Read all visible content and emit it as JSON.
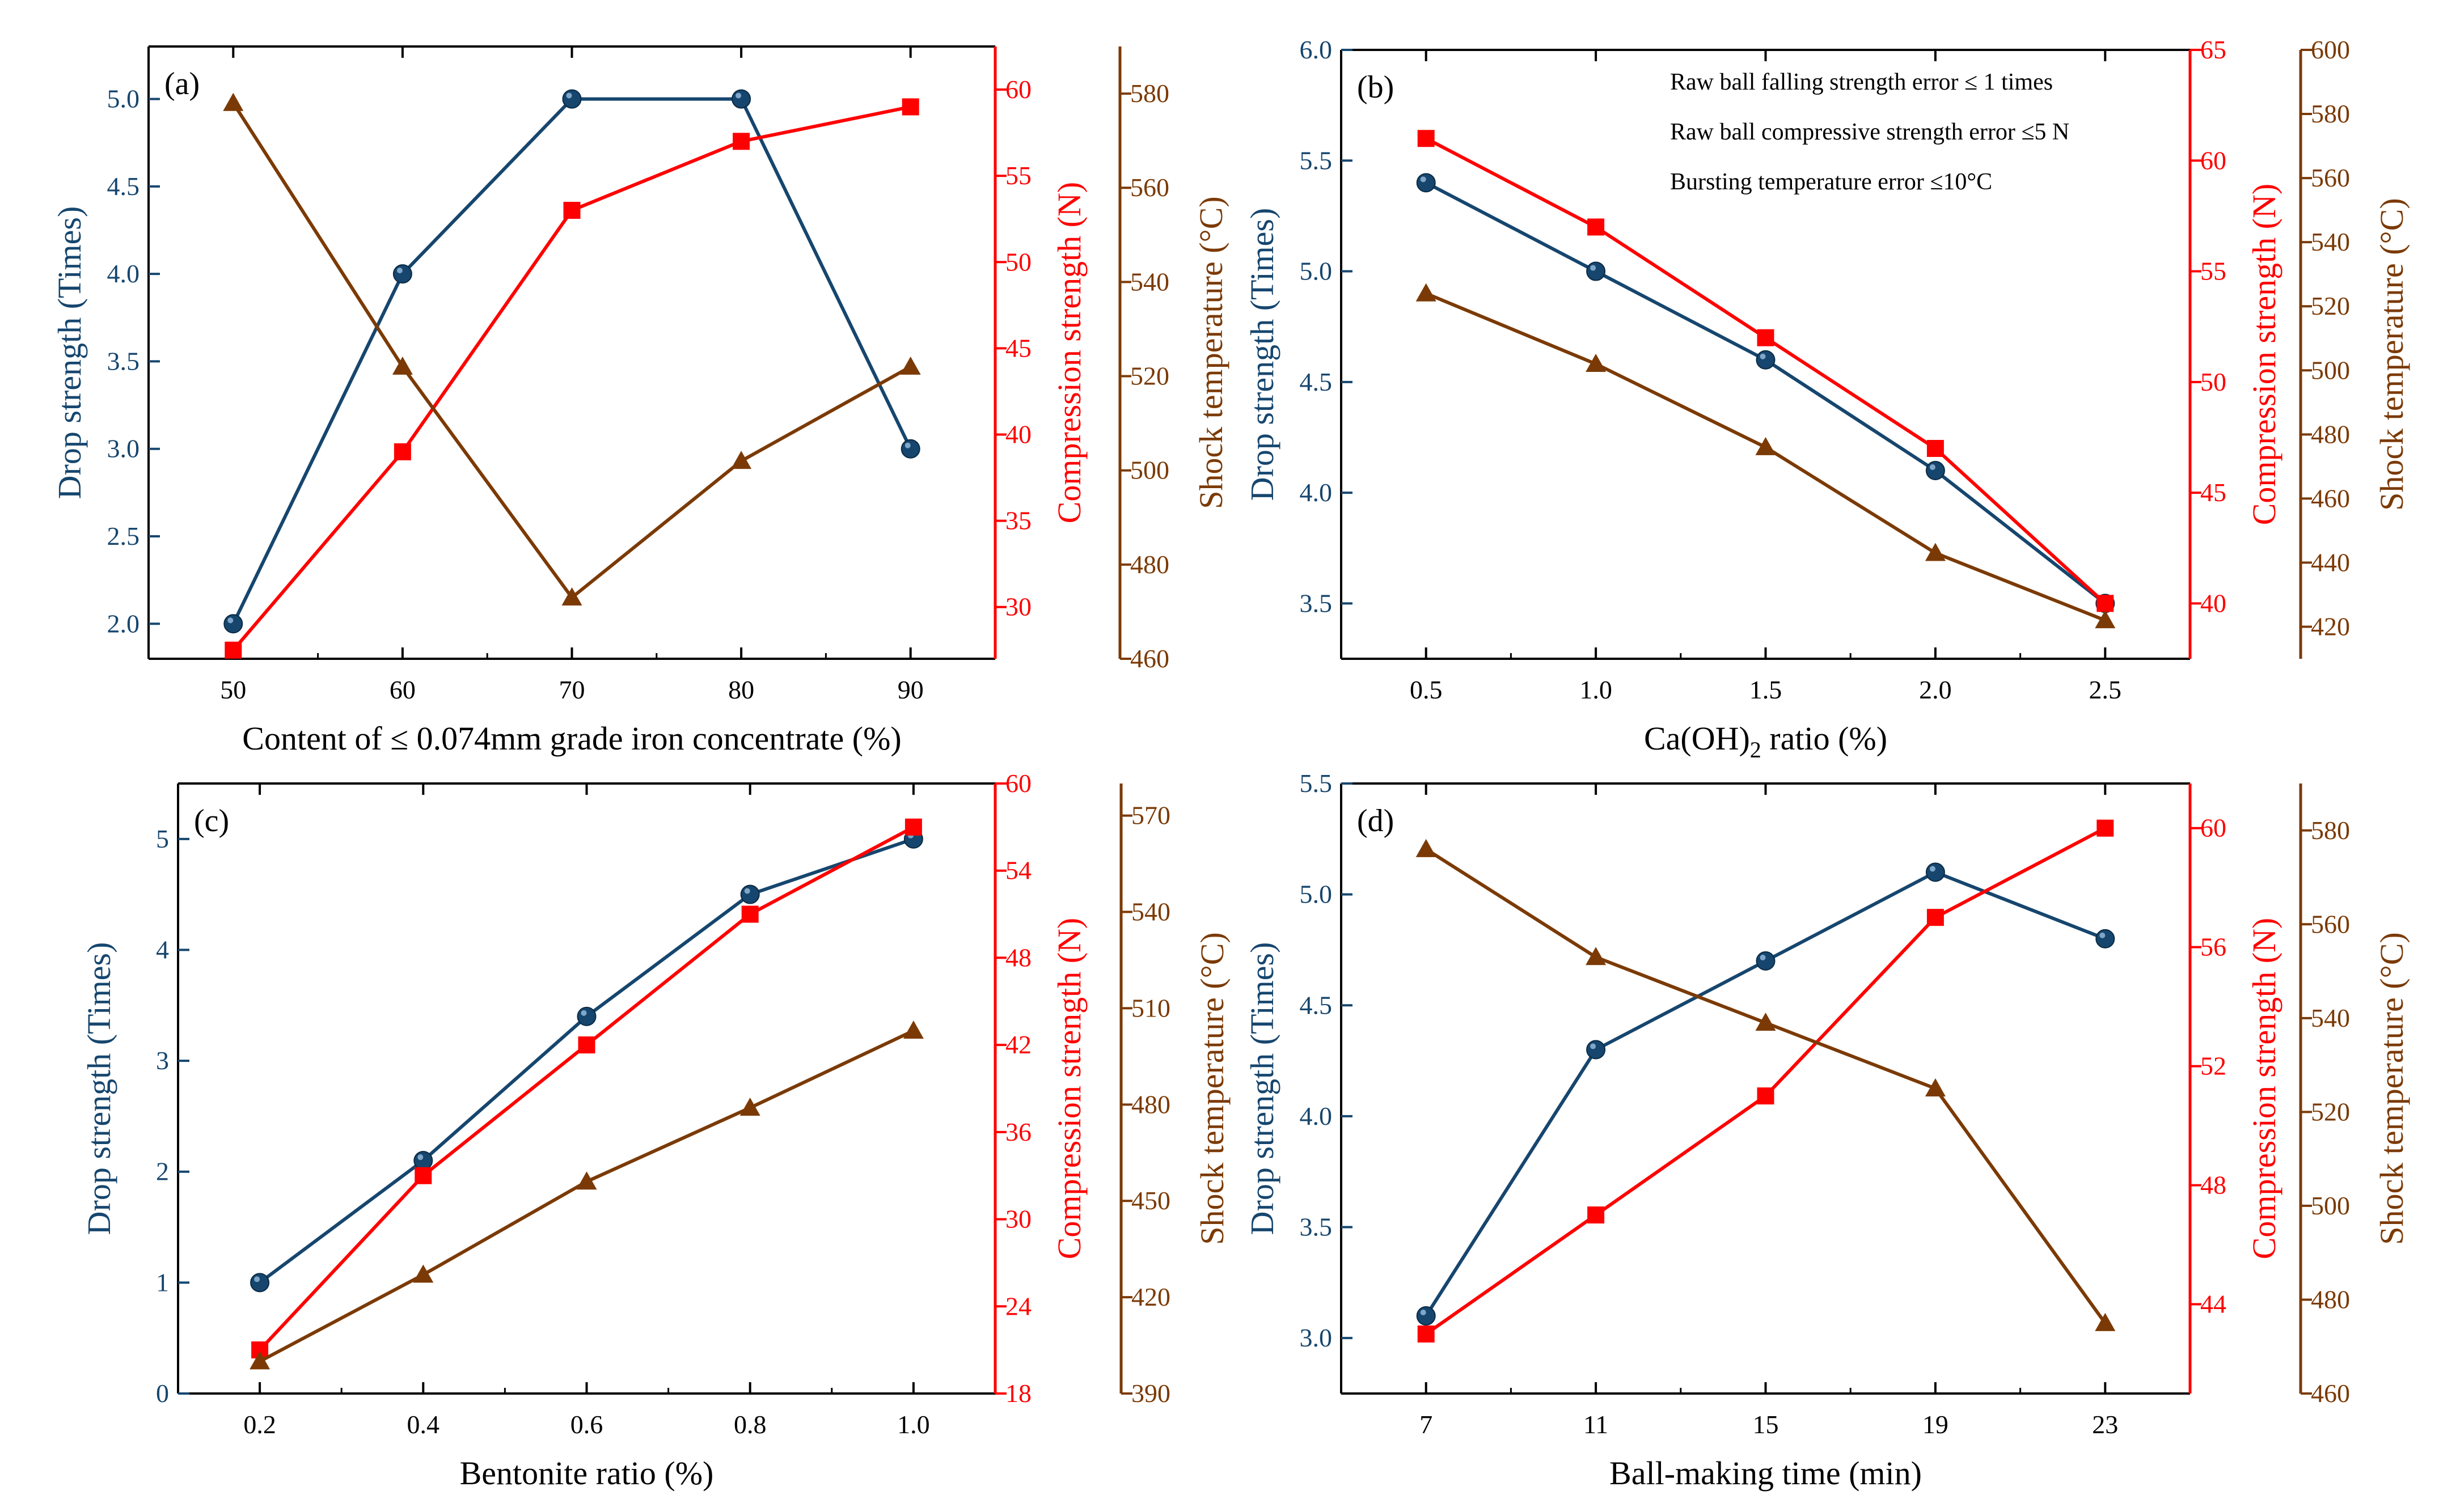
{
  "colors": {
    "blue": "#16466e",
    "red": "#ff0000",
    "brown": "#7b3a05",
    "black": "#000000"
  },
  "icons": {
    "drop_marker": "filled-circle-marker",
    "compression_marker": "filled-square-marker",
    "shock_marker": "filled-triangle-marker"
  },
  "chart_data": [
    {
      "type": "line",
      "panel_label": "(a)",
      "xlabel_main": "Content of ≤ 0.074mm grade iron concentrate (%)",
      "xlabel_sub": "",
      "xlabel_tail": "",
      "x": [
        50,
        60,
        70,
        80,
        90
      ],
      "xlim": [
        45,
        95
      ],
      "xticks": [
        "50",
        "60",
        "70",
        "80",
        "90"
      ],
      "ylabel_left": "Drop strength (Times)",
      "ylabel_right1": "Compression strength (N)",
      "ylabel_right2": "Shock temperature (°C)",
      "ylim_left": [
        1.8,
        5.3
      ],
      "yticks_left": [
        "2.0",
        "2.5",
        "3.0",
        "3.5",
        "4.0",
        "4.5",
        "5.0"
      ],
      "ylim_right1": [
        27,
        62.5
      ],
      "yticks_right1": [
        "30",
        "35",
        "40",
        "45",
        "50",
        "55",
        "60"
      ],
      "ylim_right2": [
        460,
        590
      ],
      "yticks_right2": [
        "460",
        "480",
        "500",
        "520",
        "540",
        "560",
        "580"
      ],
      "series": [
        {
          "name": "Drop strength",
          "axis": "left",
          "marker": "circle",
          "values": [
            2.0,
            4.0,
            5.0,
            5.0,
            3.0
          ]
        },
        {
          "name": "Compression strength",
          "axis": "right1",
          "marker": "square",
          "values": [
            27.5,
            39.0,
            53.0,
            57.0,
            59.0
          ]
        },
        {
          "name": "Shock temperature",
          "axis": "right2",
          "marker": "triangle",
          "values": [
            578,
            522,
            473,
            502,
            522
          ]
        }
      ],
      "annotations": []
    },
    {
      "type": "line",
      "panel_label": "(b)",
      "xlabel_main": "Ca(OH)",
      "xlabel_sub": "2",
      "xlabel_tail": " ratio (%)",
      "x": [
        0.5,
        1.0,
        1.5,
        2.0,
        2.5
      ],
      "xlim": [
        0.25,
        2.75
      ],
      "xticks": [
        "0.5",
        "1.0",
        "1.5",
        "2.0",
        "2.5"
      ],
      "ylabel_left": "Drop strength (Times)",
      "ylabel_right1": "Compression strength (N)",
      "ylabel_right2": "Shock temperature (°C)",
      "ylim_left": [
        3.25,
        6.0
      ],
      "yticks_left": [
        "3.5",
        "4.0",
        "4.5",
        "5.0",
        "5.5",
        "6.0"
      ],
      "ylim_right1": [
        37.5,
        65
      ],
      "yticks_right1": [
        "40",
        "45",
        "50",
        "55",
        "60",
        "65"
      ],
      "ylim_right2": [
        410,
        600
      ],
      "yticks_right2": [
        "420",
        "440",
        "460",
        "480",
        "500",
        "520",
        "540",
        "560",
        "580",
        "600"
      ],
      "series": [
        {
          "name": "Drop strength",
          "axis": "left",
          "marker": "circle",
          "values": [
            5.4,
            5.0,
            4.6,
            4.1,
            3.5
          ]
        },
        {
          "name": "Compression strength",
          "axis": "right1",
          "marker": "square",
          "values": [
            61.0,
            57.0,
            52.0,
            47.0,
            40.0
          ]
        },
        {
          "name": "Shock temperature",
          "axis": "right2",
          "marker": "triangle",
          "values": [
            524,
            502,
            476,
            443,
            422
          ]
        }
      ],
      "annotations": [
        "Raw ball falling strength error ≤ 1 times",
        "Raw ball compressive strength error ≤5 N",
        "Bursting temperature error ≤10°C"
      ]
    },
    {
      "type": "line",
      "panel_label": "(c)",
      "xlabel_main": "Bentonite ratio (%)",
      "xlabel_sub": "",
      "xlabel_tail": "",
      "x": [
        0.2,
        0.4,
        0.6,
        0.8,
        1.0
      ],
      "xlim": [
        0.1,
        1.1
      ],
      "xticks": [
        "0.2",
        "0.4",
        "0.6",
        "0.8",
        "1.0"
      ],
      "ylabel_left": "Drop strength (Times)",
      "ylabel_right1": "Compression strength (N)",
      "ylabel_right2": "Shock temperature (°C)",
      "ylim_left": [
        0,
        5.5
      ],
      "yticks_left": [
        "0",
        "1",
        "2",
        "3",
        "4",
        "5"
      ],
      "ylim_right1": [
        18,
        60
      ],
      "yticks_right1": [
        "18",
        "24",
        "30",
        "36",
        "42",
        "48",
        "54",
        "60"
      ],
      "ylim_right2": [
        390,
        580
      ],
      "yticks_right2": [
        "390",
        "420",
        "450",
        "480",
        "510",
        "540",
        "570"
      ],
      "series": [
        {
          "name": "Drop strength",
          "axis": "left",
          "marker": "circle",
          "values": [
            1.0,
            2.1,
            3.4,
            4.5,
            5.0
          ]
        },
        {
          "name": "Compression strength",
          "axis": "right1",
          "marker": "square",
          "values": [
            21.0,
            33.0,
            42.0,
            51.0,
            57.0
          ]
        },
        {
          "name": "Shock temperature",
          "axis": "right2",
          "marker": "triangle",
          "values": [
            400,
            427,
            456,
            479,
            503
          ]
        }
      ],
      "annotations": []
    },
    {
      "type": "line",
      "panel_label": "(d)",
      "xlabel_main": "Ball-making time (min)",
      "xlabel_sub": "",
      "xlabel_tail": "",
      "x": [
        7,
        11,
        15,
        19,
        23
      ],
      "xlim": [
        5,
        25
      ],
      "xticks": [
        "7",
        "11",
        "15",
        "19",
        "23"
      ],
      "ylabel_left": "Drop strength (Times)",
      "ylabel_right1": "Compression strength (N)",
      "ylabel_right2": "Shock temperature (°C)",
      "ylim_left": [
        2.75,
        5.5
      ],
      "yticks_left": [
        "3.0",
        "3.5",
        "4.0",
        "4.5",
        "5.0",
        "5.5"
      ],
      "ylim_right1": [
        41,
        61.5
      ],
      "yticks_right1": [
        "44",
        "48",
        "52",
        "56",
        "60"
      ],
      "ylim_right2": [
        460,
        590
      ],
      "yticks_right2": [
        "460",
        "480",
        "500",
        "520",
        "540",
        "560",
        "580"
      ],
      "series": [
        {
          "name": "Drop strength",
          "axis": "left",
          "marker": "circle",
          "values": [
            3.1,
            4.3,
            4.7,
            5.1,
            4.8
          ]
        },
        {
          "name": "Compression strength",
          "axis": "right1",
          "marker": "square",
          "values": [
            43.0,
            47.0,
            51.0,
            57.0,
            60.0
          ]
        },
        {
          "name": "Shock temperature",
          "axis": "right2",
          "marker": "triangle",
          "values": [
            576,
            553,
            539,
            525,
            475
          ]
        }
      ],
      "annotations": []
    }
  ]
}
